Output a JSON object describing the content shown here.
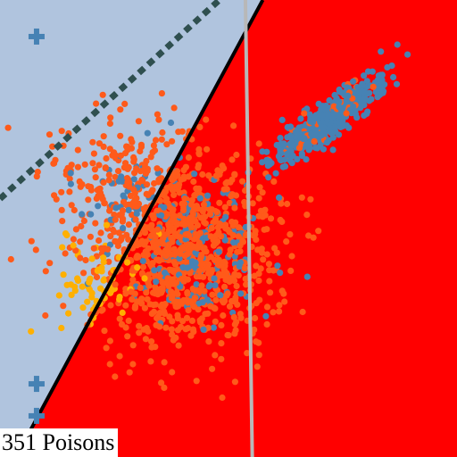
{
  "chart_data": {
    "type": "scatter",
    "annotation": "351 Poisons",
    "colors": {
      "region_a": "#b0c4de",
      "region_b": "#ff0000",
      "class_blue": "#4682b4",
      "class_orange": "#ff5a1a",
      "class_gold": "#ffb000",
      "boundary_solid": "#000000",
      "boundary_dotted": "#2f4f4f",
      "boundary_gray": "#b8b8b8",
      "marker_plus": "#4682b4"
    },
    "series": [
      {
        "marker": "dot",
        "color": "#4682b4",
        "clusters": [
          {
            "center": [
              0.72,
              0.26
            ],
            "spread": [
              0.08,
              0.018
            ],
            "angle_deg": -38,
            "count": 420
          },
          {
            "center": [
              0.42,
              0.55
            ],
            "spread": [
              0.08,
              0.07
            ],
            "angle_deg": 0,
            "count": 170
          },
          {
            "center": [
              0.28,
              0.4
            ],
            "spread": [
              0.06,
              0.06
            ],
            "angle_deg": 0,
            "count": 35
          }
        ]
      },
      {
        "marker": "dot",
        "color": "#ff5a1a",
        "clusters": [
          {
            "center": [
              0.4,
              0.55
            ],
            "spread": [
              0.1,
              0.11
            ],
            "angle_deg": 0,
            "count": 900
          },
          {
            "center": [
              0.25,
              0.4
            ],
            "spread": [
              0.07,
              0.08
            ],
            "angle_deg": 0,
            "count": 160
          },
          {
            "center": [
              0.72,
              0.26
            ],
            "spread": [
              0.07,
              0.018
            ],
            "angle_deg": -38,
            "count": 60
          }
        ]
      },
      {
        "marker": "dot",
        "color": "#ffb000",
        "clusters": [
          {
            "center": [
              0.22,
              0.62
            ],
            "spread": [
              0.045,
              0.05
            ],
            "angle_deg": 0,
            "count": 70
          }
        ]
      }
    ],
    "plus_markers": [
      [
        0.08,
        0.08
      ],
      [
        0.08,
        0.84
      ],
      [
        0.08,
        0.91
      ]
    ],
    "boundaries": [
      {
        "style": "solid",
        "from": [
          0.035,
          1.0
        ],
        "to": [
          0.575,
          0.0
        ]
      },
      {
        "style": "dotted",
        "from": [
          0.0,
          0.435
        ],
        "to": [
          0.48,
          0.0
        ]
      },
      {
        "style": "gray",
        "from": [
          0.537,
          0.0
        ],
        "to": [
          0.552,
          1.0
        ]
      }
    ]
  }
}
